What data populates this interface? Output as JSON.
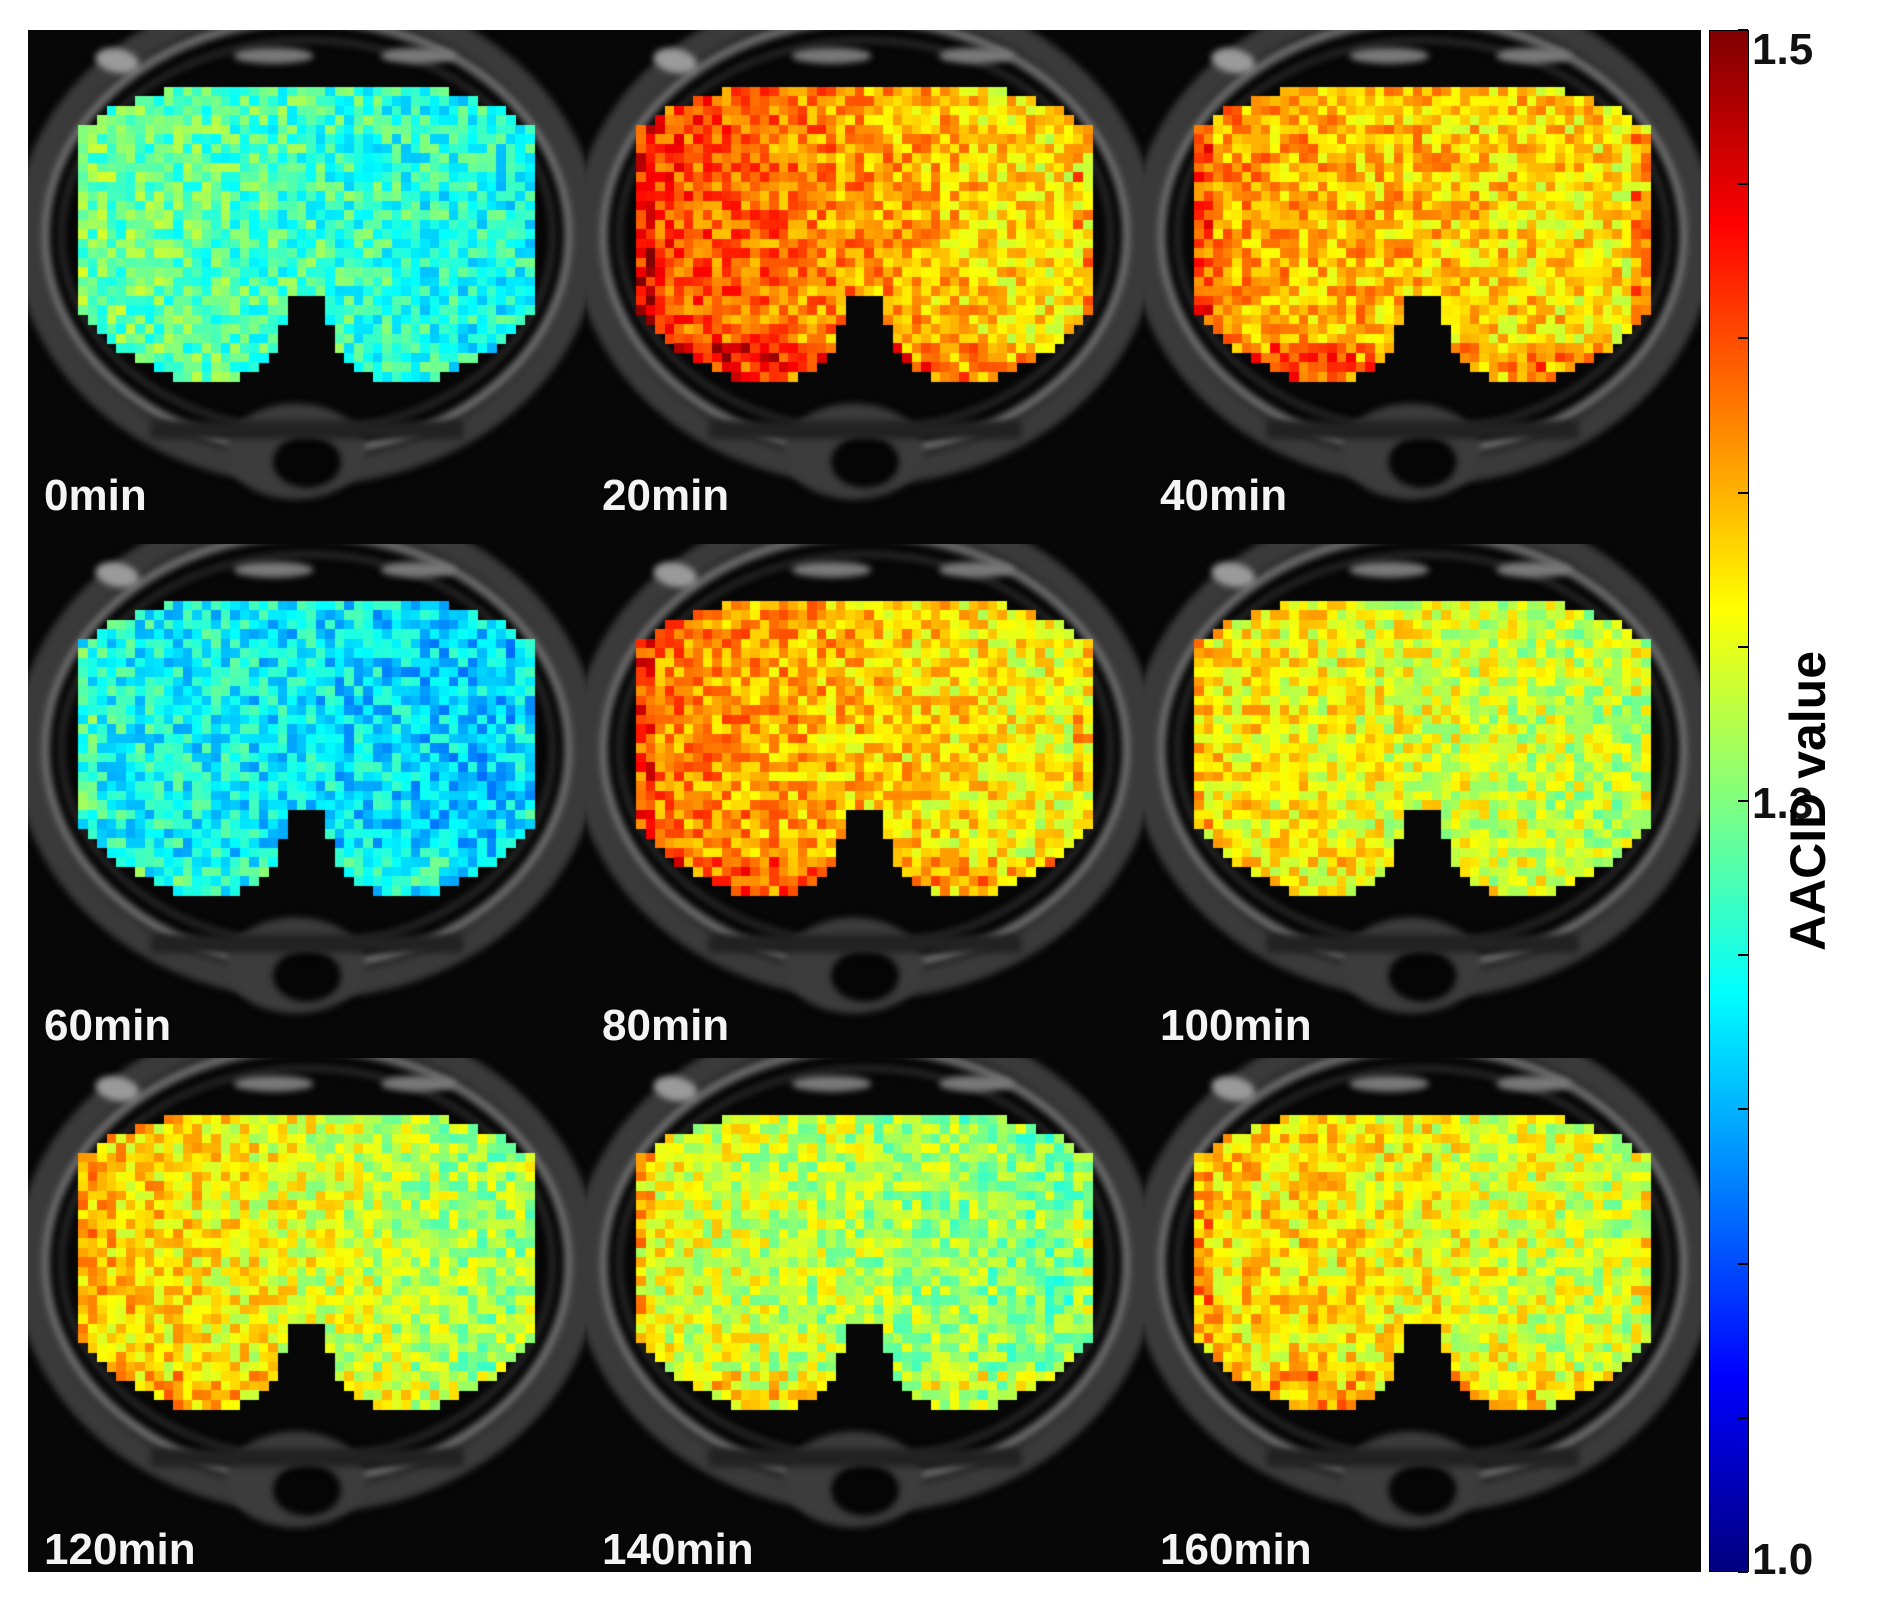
{
  "figure": {
    "panels": [
      {
        "label": "0min",
        "tint": 0.44,
        "left_bias": 0.05,
        "edge_warm": 0.0
      },
      {
        "label": "20min",
        "tint": 0.72,
        "left_bias": 0.1,
        "edge_warm": 0.12
      },
      {
        "label": "40min",
        "tint": 0.68,
        "left_bias": 0.04,
        "edge_warm": 0.1
      },
      {
        "label": "60min",
        "tint": 0.36,
        "left_bias": 0.04,
        "edge_warm": 0.05
      },
      {
        "label": "80min",
        "tint": 0.68,
        "left_bias": 0.08,
        "edge_warm": 0.08
      },
      {
        "label": "100min",
        "tint": 0.6,
        "left_bias": 0.05,
        "edge_warm": 0.03
      },
      {
        "label": "120min",
        "tint": 0.6,
        "left_bias": 0.09,
        "edge_warm": 0.05
      },
      {
        "label": "140min",
        "tint": 0.55,
        "left_bias": 0.06,
        "edge_warm": 0.08
      },
      {
        "label": "160min",
        "tint": 0.62,
        "left_bias": 0.05,
        "edge_warm": 0.08
      }
    ],
    "colorbar": {
      "colormap": "jet",
      "title": "AACID value",
      "max_label": "1.5",
      "mid_label": "1.3",
      "min_label": "1.0",
      "max": 1.5,
      "min": 1.0,
      "mid": 1.3
    }
  }
}
